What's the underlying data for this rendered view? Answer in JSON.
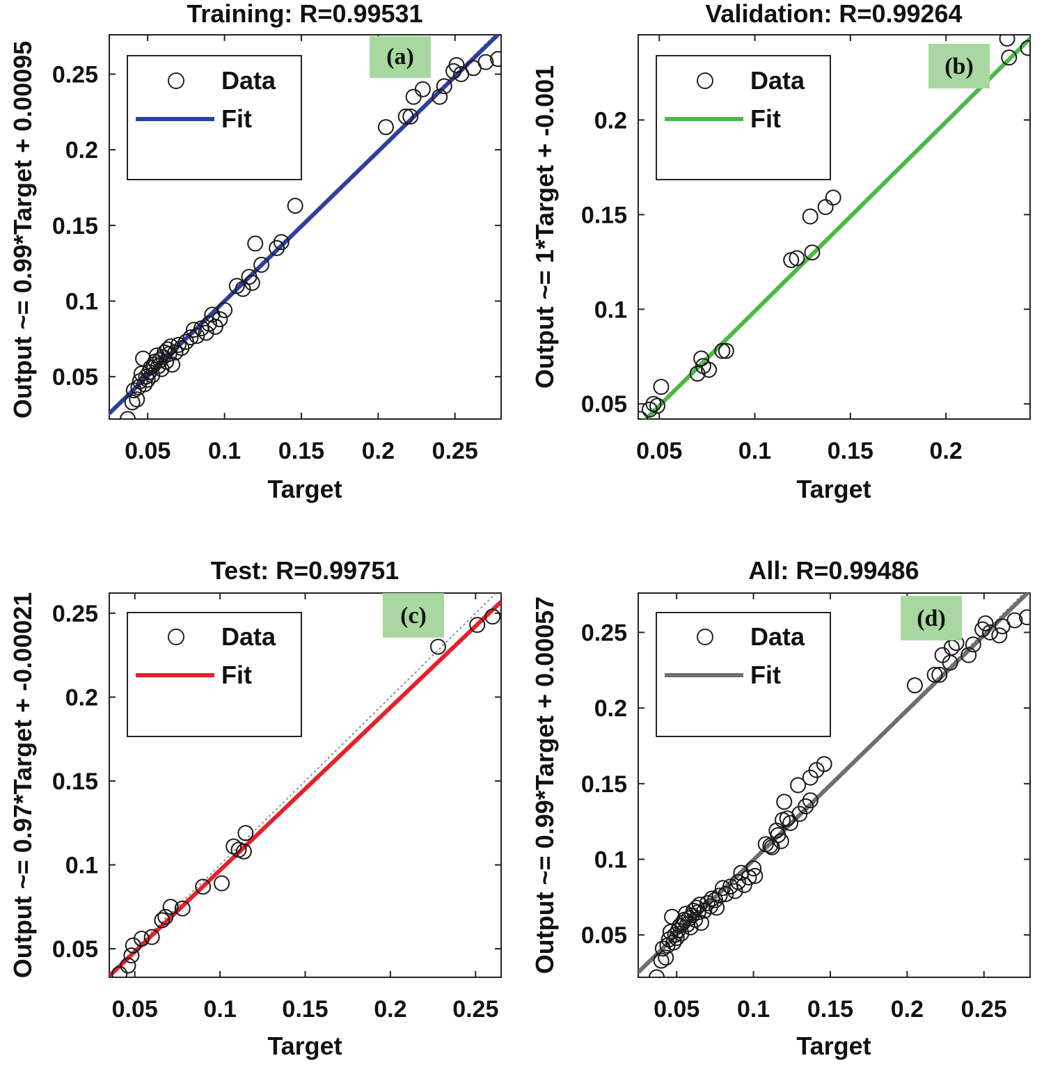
{
  "chart_data": [
    {
      "type": "scatter",
      "panel": "(a)",
      "title": "Training: R=0.99531",
      "xlabel": "Target",
      "ylabel": "Output ~= 0.99*Target + 0.00095",
      "xlim": [
        0.025,
        0.28
      ],
      "ylim": [
        0.022,
        0.276
      ],
      "xticks": [
        0.05,
        0.1,
        0.15,
        0.2,
        0.25
      ],
      "yticks": [
        0.05,
        0.1,
        0.15,
        0.2,
        0.25
      ],
      "tick_labels_x": [
        "0.05",
        "0.1",
        "0.15",
        "0.2",
        "0.25"
      ],
      "tick_labels_y": [
        "0.05",
        "0.1",
        "0.15",
        "0.2",
        "0.25"
      ],
      "legend": [
        "Data",
        "Fit"
      ],
      "fit_color": "#2e3f9e",
      "fit": {
        "slope": 0.99,
        "intercept": 0.00095
      },
      "points": [
        [
          0.037,
          0.022
        ],
        [
          0.04,
          0.033
        ],
        [
          0.041,
          0.041
        ],
        [
          0.043,
          0.035
        ],
        [
          0.044,
          0.043
        ],
        [
          0.045,
          0.047
        ],
        [
          0.046,
          0.052
        ],
        [
          0.047,
          0.062
        ],
        [
          0.048,
          0.045
        ],
        [
          0.049,
          0.05
        ],
        [
          0.05,
          0.048
        ],
        [
          0.051,
          0.053
        ],
        [
          0.052,
          0.056
        ],
        [
          0.053,
          0.051
        ],
        [
          0.054,
          0.058
        ],
        [
          0.055,
          0.06
        ],
        [
          0.056,
          0.064
        ],
        [
          0.057,
          0.057
        ],
        [
          0.058,
          0.061
        ],
        [
          0.059,
          0.055
        ],
        [
          0.06,
          0.063
        ],
        [
          0.061,
          0.066
        ],
        [
          0.062,
          0.06
        ],
        [
          0.063,
          0.068
        ],
        [
          0.064,
          0.065
        ],
        [
          0.065,
          0.07
        ],
        [
          0.066,
          0.058
        ],
        [
          0.068,
          0.066
        ],
        [
          0.07,
          0.071
        ],
        [
          0.072,
          0.069
        ],
        [
          0.075,
          0.073
        ],
        [
          0.078,
          0.076
        ],
        [
          0.08,
          0.081
        ],
        [
          0.082,
          0.077
        ],
        [
          0.085,
          0.082
        ],
        [
          0.088,
          0.079
        ],
        [
          0.09,
          0.085
        ],
        [
          0.092,
          0.091
        ],
        [
          0.094,
          0.083
        ],
        [
          0.097,
          0.088
        ],
        [
          0.1,
          0.094
        ],
        [
          0.108,
          0.11
        ],
        [
          0.112,
          0.108
        ],
        [
          0.116,
          0.116
        ],
        [
          0.118,
          0.112
        ],
        [
          0.12,
          0.138
        ],
        [
          0.124,
          0.124
        ],
        [
          0.134,
          0.135
        ],
        [
          0.137,
          0.139
        ],
        [
          0.146,
          0.163
        ],
        [
          0.205,
          0.215
        ],
        [
          0.218,
          0.222
        ],
        [
          0.221,
          0.222
        ],
        [
          0.223,
          0.235
        ],
        [
          0.229,
          0.24
        ],
        [
          0.24,
          0.235
        ],
        [
          0.243,
          0.242
        ],
        [
          0.249,
          0.252
        ],
        [
          0.251,
          0.256
        ],
        [
          0.254,
          0.25
        ],
        [
          0.262,
          0.254
        ],
        [
          0.27,
          0.258
        ],
        [
          0.278,
          0.26
        ]
      ]
    },
    {
      "type": "scatter",
      "panel": "(b)",
      "title": "Validation: R=0.99264",
      "xlabel": "Target",
      "ylabel": "Output ~= 1*Target + -0.001",
      "xlim": [
        0.039,
        0.244
      ],
      "ylim": [
        0.042,
        0.245
      ],
      "xticks": [
        0.05,
        0.1,
        0.15,
        0.2
      ],
      "yticks": [
        0.05,
        0.1,
        0.15,
        0.2
      ],
      "tick_labels_x": [
        "0.05",
        "0.1",
        "0.15",
        "0.2"
      ],
      "tick_labels_y": [
        "0.05",
        "0.1",
        "0.15",
        "0.2"
      ],
      "legend": [
        "Data",
        "Fit"
      ],
      "fit_color": "#4db848",
      "fit": {
        "slope": 1.0,
        "intercept": -0.001
      },
      "points": [
        [
          0.04,
          0.042
        ],
        [
          0.045,
          0.047
        ],
        [
          0.047,
          0.05
        ],
        [
          0.049,
          0.049
        ],
        [
          0.051,
          0.059
        ],
        [
          0.07,
          0.066
        ],
        [
          0.072,
          0.074
        ],
        [
          0.073,
          0.07
        ],
        [
          0.076,
          0.068
        ],
        [
          0.083,
          0.078
        ],
        [
          0.085,
          0.078
        ],
        [
          0.119,
          0.126
        ],
        [
          0.122,
          0.127
        ],
        [
          0.129,
          0.149
        ],
        [
          0.13,
          0.13
        ],
        [
          0.137,
          0.154
        ],
        [
          0.141,
          0.159
        ],
        [
          0.232,
          0.243
        ],
        [
          0.233,
          0.233
        ],
        [
          0.243,
          0.238
        ]
      ]
    },
    {
      "type": "scatter",
      "panel": "(c)",
      "title": "Test: R=0.99751",
      "xlabel": "Target",
      "ylabel": "Output ~= 0.97*Target + -0.00021",
      "xlim": [
        0.035,
        0.265
      ],
      "ylim": [
        0.033,
        0.262
      ],
      "xticks": [
        0.05,
        0.1,
        0.15,
        0.2,
        0.25
      ],
      "yticks": [
        0.05,
        0.1,
        0.15,
        0.2,
        0.25
      ],
      "tick_labels_x": [
        "0.05",
        "0.1",
        "0.15",
        "0.2",
        "0.25"
      ],
      "tick_labels_y": [
        "0.05",
        "0.1",
        "0.15",
        "0.2",
        "0.25"
      ],
      "legend": [
        "Data",
        "Fit"
      ],
      "fit_color": "#e8202a",
      "fit": {
        "slope": 0.97,
        "intercept": -0.00021
      },
      "points": [
        [
          0.041,
          0.035
        ],
        [
          0.046,
          0.04
        ],
        [
          0.048,
          0.046
        ],
        [
          0.049,
          0.052
        ],
        [
          0.054,
          0.056
        ],
        [
          0.06,
          0.057
        ],
        [
          0.066,
          0.067
        ],
        [
          0.068,
          0.069
        ],
        [
          0.071,
          0.075
        ],
        [
          0.078,
          0.074
        ],
        [
          0.09,
          0.087
        ],
        [
          0.101,
          0.089
        ],
        [
          0.108,
          0.111
        ],
        [
          0.111,
          0.109
        ],
        [
          0.114,
          0.108
        ],
        [
          0.115,
          0.119
        ],
        [
          0.228,
          0.23
        ],
        [
          0.251,
          0.243
        ],
        [
          0.26,
          0.248
        ]
      ]
    },
    {
      "type": "scatter",
      "panel": "(d)",
      "title": "All: R=0.99486",
      "xlabel": "Target",
      "ylabel": "Output ~= 0.99*Target + 0.00057",
      "xlim": [
        0.025,
        0.28
      ],
      "ylim": [
        0.022,
        0.276
      ],
      "xticks": [
        0.05,
        0.1,
        0.15,
        0.2,
        0.25
      ],
      "yticks": [
        0.05,
        0.1,
        0.15,
        0.2,
        0.25
      ],
      "tick_labels_x": [
        "0.05",
        "0.1",
        "0.15",
        "0.2",
        "0.25"
      ],
      "tick_labels_y": [
        "0.05",
        "0.1",
        "0.15",
        "0.2",
        "0.25"
      ],
      "legend": [
        "Data",
        "Fit"
      ],
      "fit_color": "#6e6e6e",
      "fit": {
        "slope": 0.99,
        "intercept": 0.00057
      },
      "points": [
        [
          0.037,
          0.022
        ],
        [
          0.04,
          0.033
        ],
        [
          0.041,
          0.041
        ],
        [
          0.043,
          0.035
        ],
        [
          0.044,
          0.043
        ],
        [
          0.045,
          0.047
        ],
        [
          0.046,
          0.052
        ],
        [
          0.047,
          0.062
        ],
        [
          0.048,
          0.045
        ],
        [
          0.049,
          0.05
        ],
        [
          0.05,
          0.048
        ],
        [
          0.051,
          0.053
        ],
        [
          0.052,
          0.056
        ],
        [
          0.053,
          0.051
        ],
        [
          0.054,
          0.058
        ],
        [
          0.055,
          0.06
        ],
        [
          0.056,
          0.064
        ],
        [
          0.057,
          0.057
        ],
        [
          0.058,
          0.061
        ],
        [
          0.059,
          0.055
        ],
        [
          0.06,
          0.063
        ],
        [
          0.061,
          0.066
        ],
        [
          0.062,
          0.06
        ],
        [
          0.063,
          0.068
        ],
        [
          0.064,
          0.065
        ],
        [
          0.065,
          0.07
        ],
        [
          0.066,
          0.058
        ],
        [
          0.068,
          0.066
        ],
        [
          0.07,
          0.071
        ],
        [
          0.072,
          0.069
        ],
        [
          0.073,
          0.074
        ],
        [
          0.075,
          0.073
        ],
        [
          0.076,
          0.068
        ],
        [
          0.078,
          0.076
        ],
        [
          0.08,
          0.081
        ],
        [
          0.082,
          0.077
        ],
        [
          0.085,
          0.082
        ],
        [
          0.088,
          0.079
        ],
        [
          0.09,
          0.085
        ],
        [
          0.092,
          0.091
        ],
        [
          0.094,
          0.083
        ],
        [
          0.097,
          0.088
        ],
        [
          0.1,
          0.094
        ],
        [
          0.101,
          0.089
        ],
        [
          0.108,
          0.11
        ],
        [
          0.111,
          0.109
        ],
        [
          0.112,
          0.108
        ],
        [
          0.115,
          0.119
        ],
        [
          0.116,
          0.116
        ],
        [
          0.118,
          0.112
        ],
        [
          0.119,
          0.126
        ],
        [
          0.12,
          0.138
        ],
        [
          0.122,
          0.127
        ],
        [
          0.124,
          0.124
        ],
        [
          0.129,
          0.149
        ],
        [
          0.13,
          0.13
        ],
        [
          0.134,
          0.135
        ],
        [
          0.137,
          0.154
        ],
        [
          0.137,
          0.139
        ],
        [
          0.141,
          0.159
        ],
        [
          0.146,
          0.163
        ],
        [
          0.205,
          0.215
        ],
        [
          0.218,
          0.222
        ],
        [
          0.221,
          0.222
        ],
        [
          0.223,
          0.235
        ],
        [
          0.228,
          0.23
        ],
        [
          0.229,
          0.24
        ],
        [
          0.232,
          0.243
        ],
        [
          0.24,
          0.235
        ],
        [
          0.243,
          0.242
        ],
        [
          0.249,
          0.252
        ],
        [
          0.251,
          0.256
        ],
        [
          0.254,
          0.25
        ],
        [
          0.26,
          0.248
        ],
        [
          0.262,
          0.254
        ],
        [
          0.27,
          0.258
        ],
        [
          0.278,
          0.26
        ]
      ]
    }
  ]
}
